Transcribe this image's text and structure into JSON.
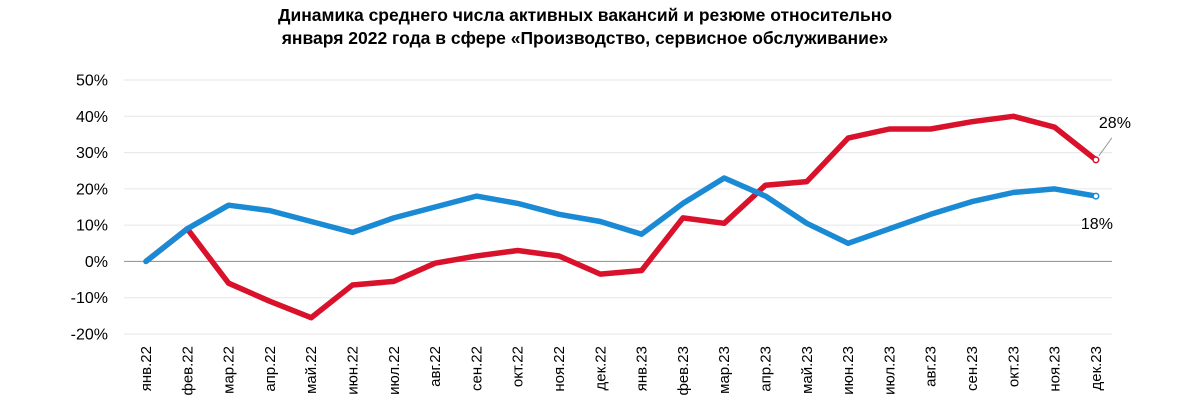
{
  "chart_data": {
    "type": "line",
    "title_lines": [
      "Динамика среднего числа активных вакансий и резюме относительно",
      "января 2022 года в сфере «Производство, сервисное обслуживание»"
    ],
    "categories": [
      "янв.22",
      "фев.22",
      "мар.22",
      "апр.22",
      "май.22",
      "июн.22",
      "июл.22",
      "авг.22",
      "сен.22",
      "окт.22",
      "ноя.22",
      "дек.22",
      "янв.23",
      "фев.23",
      "мар.23",
      "апр.23",
      "май.23",
      "июн.23",
      "июл.23",
      "авг.23",
      "сен.23",
      "окт.23",
      "ноя.23",
      "дек.23"
    ],
    "y_ticks": [
      "50%",
      "40%",
      "30%",
      "20%",
      "10%",
      "0%",
      "-10%",
      "-20%"
    ],
    "ylim": [
      -20,
      50
    ],
    "grid": true,
    "legend": "none",
    "series": [
      {
        "color": "#d9112b",
        "values": [
          0,
          9,
          -6,
          -11,
          -15.5,
          -6.5,
          -5.5,
          -0.5,
          1.5,
          3,
          1.5,
          -3.5,
          -2.5,
          12,
          10.5,
          21,
          22,
          34,
          36.5,
          36.5,
          38.5,
          40,
          37,
          28
        ],
        "end_label": "28%"
      },
      {
        "color": "#1a8ad4",
        "values": [
          0,
          9,
          15.5,
          14,
          11,
          8,
          12,
          15,
          18,
          16,
          13,
          11,
          7.5,
          16,
          23,
          18,
          10.5,
          5,
          9,
          13,
          16.5,
          19,
          20,
          18
        ],
        "end_label": "18%"
      }
    ]
  }
}
